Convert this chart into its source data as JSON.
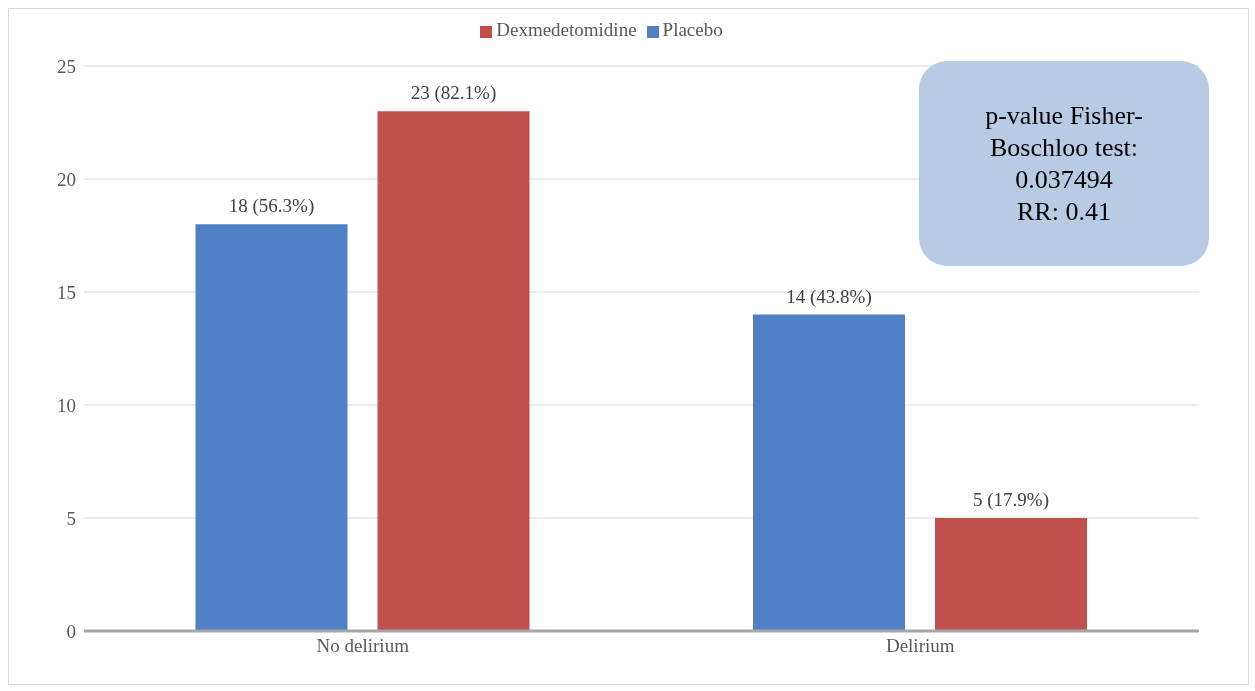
{
  "chart_data": {
    "type": "bar",
    "categories": [
      "No delirium",
      "Delirium"
    ],
    "series": [
      {
        "name": "Placebo",
        "color": "#4f7fc4",
        "values": [
          18,
          14
        ],
        "value_labels": [
          "18 (56.3%)",
          "14 (43.8%)"
        ]
      },
      {
        "name": "Dexmedetomidine",
        "color": "#c0504d",
        "values": [
          23,
          5
        ],
        "value_labels": [
          "23 (82.1%)",
          "5 (17.9%)"
        ]
      }
    ],
    "ylim": [
      0,
      25
    ],
    "yticks": [
      0,
      5,
      10,
      15,
      20,
      25
    ],
    "grid": "y",
    "legend": "top",
    "annotations": [
      "p-value Fisher-Boschloo test: 0.037494",
      "RR: 0.41"
    ]
  }
}
